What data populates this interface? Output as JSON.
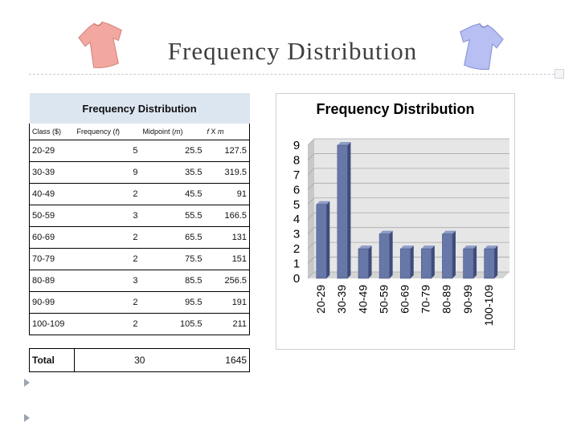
{
  "slide": {
    "title": "Frequency Distribution"
  },
  "table": {
    "title": "Frequency Distribution",
    "headers": [
      "Class ($)",
      "Frequency (f)",
      "Midpoint (m)",
      "f X m"
    ],
    "rows": [
      {
        "class": "20-29",
        "freq": "5",
        "mid": "25.5",
        "fx": "127.5"
      },
      {
        "class": "30-39",
        "freq": "9",
        "mid": "35.5",
        "fx": "319.5"
      },
      {
        "class": "40-49",
        "freq": "2",
        "mid": "45.5",
        "fx": "91"
      },
      {
        "class": "50-59",
        "freq": "3",
        "mid": "55.5",
        "fx": "166.5"
      },
      {
        "class": "60-69",
        "freq": "2",
        "mid": "65.5",
        "fx": "131"
      },
      {
        "class": "70-79",
        "freq": "2",
        "mid": "75.5",
        "fx": "151"
      },
      {
        "class": "80-89",
        "freq": "3",
        "mid": "85.5",
        "fx": "256.5"
      },
      {
        "class": "90-99",
        "freq": "2",
        "mid": "95.5",
        "fx": "191"
      },
      {
        "class": "100-109",
        "freq": "2",
        "mid": "105.5",
        "fx": "211"
      }
    ],
    "total": {
      "label": "Total",
      "freq": "30",
      "fx": "1645"
    }
  },
  "colors": {
    "bar_front": "#6677a8",
    "bar_side": "#3e4c7a",
    "bar_top": "#8e9cc6",
    "plot_back": "#e6e6e6",
    "plot_side": "#c8c8c8",
    "table_header": "#dce6f1"
  },
  "icons": {
    "left": "pink-tshirt-icon",
    "right": "blue-tshirt-icon"
  },
  "chart_data": {
    "type": "bar",
    "title": "Frequency Distribution",
    "categories": [
      "20-29",
      "30-39",
      "40-49",
      "50-59",
      "60-69",
      "70-79",
      "80-89",
      "90-99",
      "100-109"
    ],
    "values": [
      5,
      9,
      2,
      3,
      2,
      2,
      3,
      2,
      2
    ],
    "ylim": [
      0,
      9
    ],
    "yticks": [
      0,
      1,
      2,
      3,
      4,
      5,
      6,
      7,
      8,
      9
    ],
    "grid": true,
    "legend": "none",
    "style": "3d-column"
  }
}
